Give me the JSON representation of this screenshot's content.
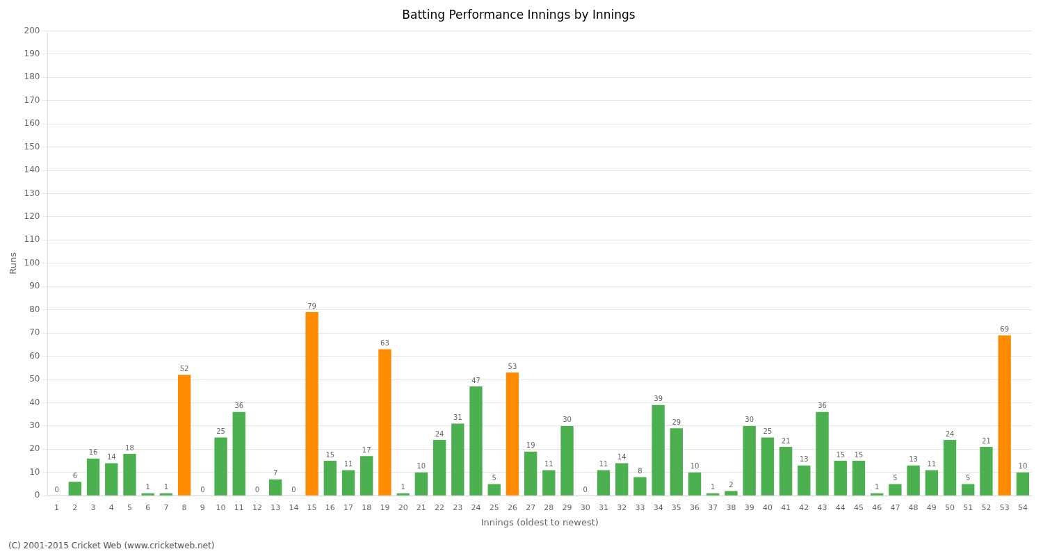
{
  "chart_data": {
    "type": "bar",
    "title": "Batting Performance Innings by Innings",
    "xlabel": "Innings (oldest to newest)",
    "ylabel": "Runs",
    "footer": "(C) 2001-2015 Cricket Web (www.cricketweb.net)",
    "categories": [
      "1",
      "2",
      "3",
      "4",
      "5",
      "6",
      "7",
      "8",
      "9",
      "10",
      "11",
      "12",
      "13",
      "14",
      "15",
      "16",
      "17",
      "18",
      "19",
      "20",
      "21",
      "22",
      "23",
      "24",
      "25",
      "26",
      "27",
      "28",
      "29",
      "30",
      "31",
      "32",
      "33",
      "34",
      "35",
      "36",
      "37",
      "38",
      "39",
      "40",
      "41",
      "42",
      "43",
      "44",
      "45",
      "46",
      "47",
      "48",
      "49",
      "50",
      "51",
      "52",
      "53",
      "54"
    ],
    "values": [
      0,
      6,
      16,
      14,
      18,
      1,
      1,
      52,
      0,
      25,
      36,
      0,
      7,
      0,
      79,
      15,
      11,
      17,
      63,
      1,
      10,
      24,
      31,
      47,
      5,
      53,
      19,
      11,
      30,
      0,
      11,
      14,
      8,
      39,
      29,
      10,
      1,
      2,
      30,
      25,
      21,
      13,
      36,
      15,
      15,
      1,
      5,
      13,
      11,
      24,
      5,
      21,
      69,
      10
    ],
    "colors": [
      "#4caf50",
      "#4caf50",
      "#4caf50",
      "#4caf50",
      "#4caf50",
      "#4caf50",
      "#4caf50",
      "#ff8c00",
      "#4caf50",
      "#4caf50",
      "#4caf50",
      "#4caf50",
      "#4caf50",
      "#4caf50",
      "#ff8c00",
      "#4caf50",
      "#4caf50",
      "#4caf50",
      "#ff8c00",
      "#4caf50",
      "#4caf50",
      "#4caf50",
      "#4caf50",
      "#4caf50",
      "#4caf50",
      "#ff8c00",
      "#4caf50",
      "#4caf50",
      "#4caf50",
      "#4caf50",
      "#4caf50",
      "#4caf50",
      "#4caf50",
      "#4caf50",
      "#4caf50",
      "#4caf50",
      "#4caf50",
      "#4caf50",
      "#4caf50",
      "#4caf50",
      "#4caf50",
      "#4caf50",
      "#4caf50",
      "#4caf50",
      "#4caf50",
      "#4caf50",
      "#4caf50",
      "#4caf50",
      "#4caf50",
      "#4caf50",
      "#4caf50",
      "#4caf50",
      "#ff8c00",
      "#4caf50"
    ],
    "ylim": [
      0,
      200
    ],
    "yticks": [
      0,
      10,
      20,
      30,
      40,
      50,
      60,
      70,
      80,
      90,
      100,
      110,
      120,
      130,
      140,
      150,
      160,
      170,
      180,
      190,
      200
    ],
    "grid": true,
    "data_labels": true
  }
}
